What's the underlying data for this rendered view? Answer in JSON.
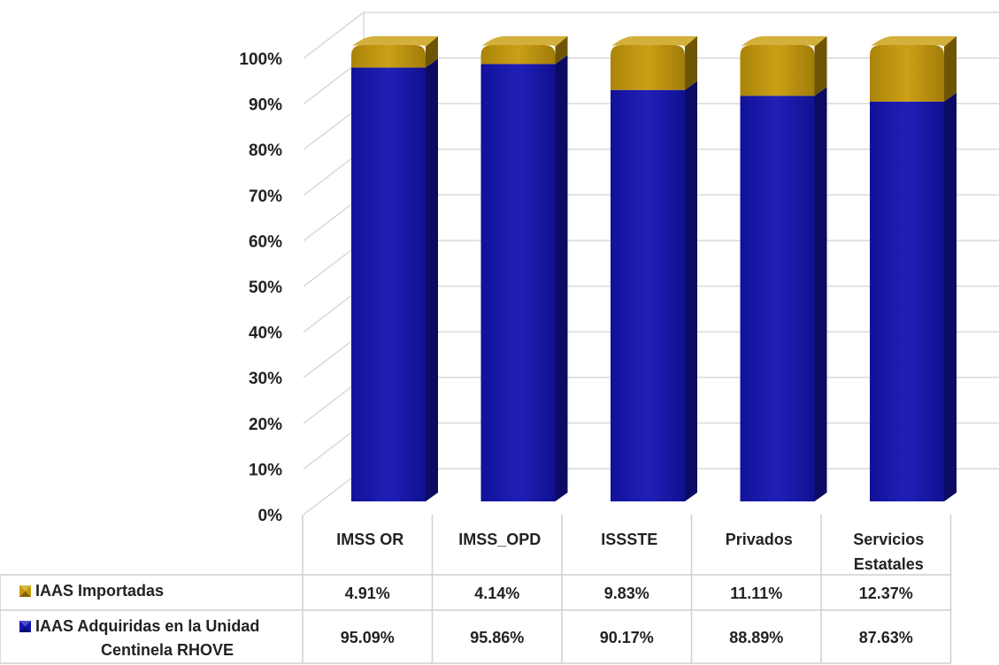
{
  "chart_data": {
    "type": "bar",
    "stacked": "100%",
    "categories": [
      "IMSS OR",
      "IMSS_OPD",
      "ISSSTE",
      "Privados",
      "Servicios Estatales"
    ],
    "category_lines": [
      [
        "IMSS OR"
      ],
      [
        "IMSS_OPD"
      ],
      [
        "ISSSTE"
      ],
      [
        "Privados"
      ],
      [
        "Servicios",
        "Estatales"
      ]
    ],
    "series": [
      {
        "name": "IAAS Adquiridas en la Unidad Centinela RHOVE",
        "name_lines": [
          "IAAS Adquiridas en la Unidad",
          "Centinela RHOVE"
        ],
        "values": [
          95.09,
          95.86,
          90.17,
          88.89,
          87.63
        ],
        "labels": [
          "95.09%",
          "95.86%",
          "90.17%",
          "88.89%",
          "87.63%"
        ],
        "color": "#1414B4"
      },
      {
        "name": "IAAS Importadas",
        "name_lines": [
          "IAAS Importadas"
        ],
        "values": [
          4.91,
          4.14,
          9.83,
          11.11,
          12.37
        ],
        "labels": [
          "4.91%",
          "4.14%",
          "9.83%",
          "11.11%",
          "12.37%"
        ],
        "color": "#C89B0A"
      }
    ],
    "y_ticks": [
      "0%",
      "10%",
      "20%",
      "30%",
      "40%",
      "50%",
      "60%",
      "70%",
      "80%",
      "90%",
      "100%"
    ],
    "ylim": [
      0,
      100
    ],
    "grid": true,
    "legend": "data-table"
  }
}
